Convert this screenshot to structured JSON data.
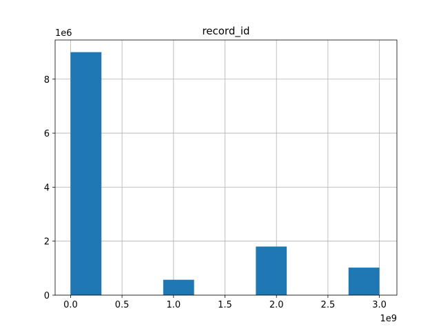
{
  "chart_data": {
    "type": "bar",
    "title": "record_id",
    "xlabel": "",
    "ylabel": "",
    "x_offset_label": "1e9",
    "y_offset_label": "1e6",
    "xlim": [
      -0.15,
      3.17
    ],
    "ylim": [
      0,
      9.45
    ],
    "grid": true,
    "bar_color": "#1f77b4",
    "x_ticks": [
      {
        "value": 0.0,
        "label": "0.0"
      },
      {
        "value": 0.5,
        "label": "0.5"
      },
      {
        "value": 1.0,
        "label": "1.0"
      },
      {
        "value": 1.5,
        "label": "1.5"
      },
      {
        "value": 2.0,
        "label": "2.0"
      },
      {
        "value": 2.5,
        "label": "2.5"
      },
      {
        "value": 3.0,
        "label": "3.0"
      }
    ],
    "y_ticks": [
      {
        "value": 0,
        "label": "0"
      },
      {
        "value": 2,
        "label": "2"
      },
      {
        "value": 4,
        "label": "4"
      },
      {
        "value": 6,
        "label": "6"
      },
      {
        "value": 8,
        "label": "8"
      }
    ],
    "bins": [
      {
        "x0": 0.0,
        "x1": 0.3,
        "count": 9.0
      },
      {
        "x0": 0.3,
        "x1": 0.6,
        "count": 0
      },
      {
        "x0": 0.6,
        "x1": 0.9,
        "count": 0
      },
      {
        "x0": 0.9,
        "x1": 1.2,
        "count": 0.57
      },
      {
        "x0": 1.2,
        "x1": 1.5,
        "count": 0
      },
      {
        "x0": 1.5,
        "x1": 1.8,
        "count": 0
      },
      {
        "x0": 1.8,
        "x1": 2.1,
        "count": 1.8
      },
      {
        "x0": 2.1,
        "x1": 2.4,
        "count": 0
      },
      {
        "x0": 2.4,
        "x1": 2.7,
        "count": 0
      },
      {
        "x0": 2.7,
        "x1": 3.0,
        "count": 1.02
      }
    ]
  }
}
